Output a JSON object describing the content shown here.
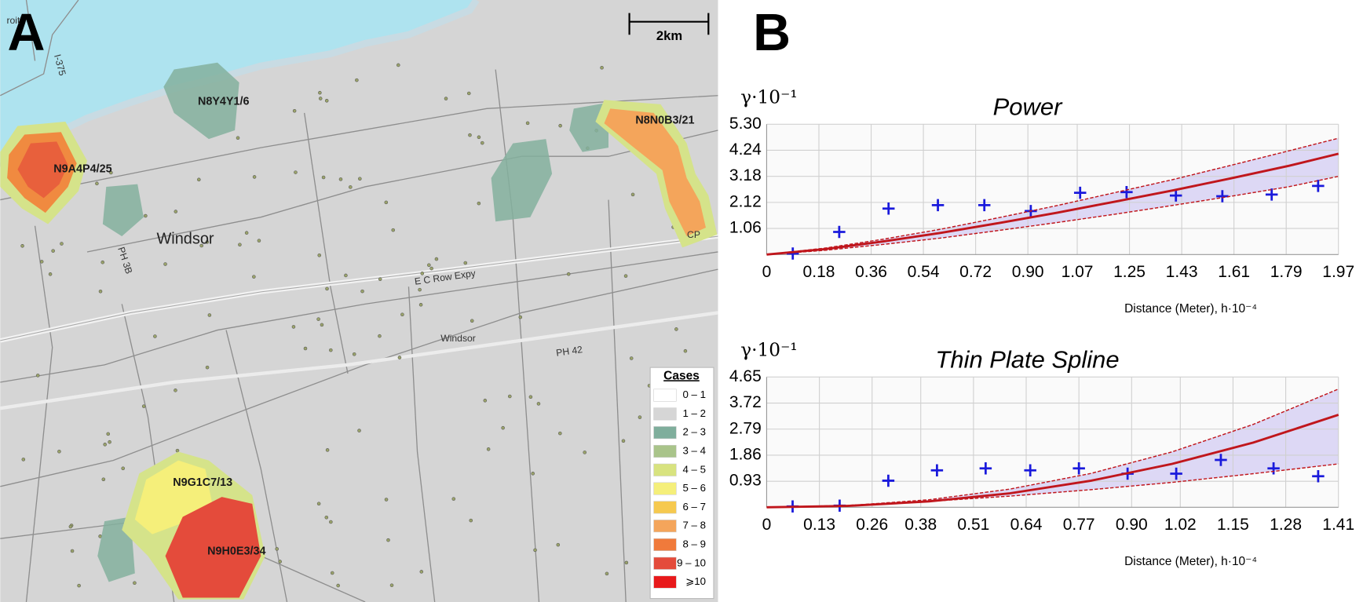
{
  "map": {
    "panel": "A",
    "scale": "2km",
    "labels": [
      "roit",
      "I-375",
      "N8Y4Y1/6",
      "N9A4P4/25",
      "N8N0B3/21",
      "Windsor",
      "PH 3B",
      "E C Row Expy",
      "Windsor",
      "PH 42",
      "CP",
      "N9G1C7/13",
      "N9H0E3/34"
    ],
    "legend": {
      "title": "Cases",
      "items": [
        {
          "label": "0 – 1",
          "color": "#ffffff"
        },
        {
          "label": "1 – 2",
          "color": "#d6d6d6"
        },
        {
          "label": "2 – 3",
          "color": "#7fae9c"
        },
        {
          "label": "3 – 4",
          "color": "#a9c48a"
        },
        {
          "label": "4 – 5",
          "color": "#d8e37f"
        },
        {
          "label": "5 – 6",
          "color": "#f5ef7a"
        },
        {
          "label": "6 – 7",
          "color": "#f6c94f"
        },
        {
          "label": "7 – 8",
          "color": "#f4a55b"
        },
        {
          "label": "8 – 9",
          "color": "#f07a3b"
        },
        {
          "label": "9 – 10",
          "color": "#e44b3b"
        },
        {
          "label": "⩾10",
          "color": "#e8191b"
        }
      ]
    }
  },
  "panel_b": "B",
  "chart_data": [
    {
      "type": "scatter",
      "title": "Power",
      "y_label": "γ·10⁻¹",
      "x_label": "Distance (Meter), h·10⁻⁴",
      "xlim": [
        0,
        1.97
      ],
      "ylim": [
        0,
        5.3
      ],
      "xticks": [
        0,
        0.18,
        0.36,
        0.54,
        0.72,
        {
          "value": 0.9,
          "label": "0.90"
        },
        1.07,
        1.25,
        1.43,
        1.61,
        1.79,
        1.97
      ],
      "yticks": [
        1.06,
        2.12,
        3.18,
        4.24,
        {
          "value": 5.3,
          "label": "5.30"
        }
      ],
      "grid": true,
      "band_color": "#c9c2f2",
      "series": [
        {
          "type": "scatter",
          "color": "#1a1adc",
          "x": [
            0.09,
            0.25,
            0.42,
            0.59,
            0.75,
            0.91,
            1.08,
            1.24,
            1.41,
            1.57,
            1.74,
            1.9
          ],
          "values": [
            0.04,
            0.92,
            1.87,
            2.01,
            2.01,
            1.77,
            2.51,
            2.54,
            2.4,
            2.37,
            2.44,
            2.79
          ]
        },
        {
          "type": "line",
          "color": "#c0161c",
          "x": [
            0,
            0.2,
            0.4,
            0.6,
            0.8,
            1.0,
            1.2,
            1.4,
            1.6,
            1.8,
            1.97
          ],
          "values": [
            0,
            0.22,
            0.53,
            0.88,
            1.28,
            1.7,
            2.15,
            2.61,
            3.1,
            3.61,
            4.1
          ]
        },
        {
          "type": "line",
          "color": "#c0161c",
          "dash": true,
          "x": [
            0,
            0.2,
            0.4,
            0.6,
            0.8,
            1.0,
            1.2,
            1.4,
            1.6,
            1.8,
            1.97
          ],
          "values": [
            0,
            0.26,
            0.62,
            1.03,
            1.5,
            1.99,
            2.52,
            3.05,
            3.63,
            4.22,
            4.73
          ]
        },
        {
          "type": "line",
          "color": "#c0161c",
          "dash": true,
          "x": [
            0,
            0.2,
            0.4,
            0.6,
            0.8,
            1.0,
            1.2,
            1.4,
            1.6,
            1.8,
            1.97
          ],
          "values": [
            0,
            0.17,
            0.41,
            0.67,
            0.98,
            1.3,
            1.64,
            2.0,
            2.37,
            2.76,
            3.18
          ]
        }
      ]
    },
    {
      "type": "scatter",
      "title": "Thin Plate Spline",
      "y_label": "γ·10⁻¹",
      "x_label": "Distance (Meter), h·10⁻⁴",
      "xlim": [
        0,
        1.41
      ],
      "ylim": [
        0,
        4.65
      ],
      "xticks": [
        0,
        0.13,
        0.26,
        0.38,
        0.51,
        0.64,
        0.77,
        {
          "value": 0.9,
          "label": "0.90"
        },
        1.02,
        1.15,
        1.28,
        1.41
      ],
      "yticks": [
        0.93,
        1.86,
        2.79,
        3.72,
        4.65
      ],
      "grid": true,
      "band_color": "#c9c2f2",
      "series": [
        {
          "type": "scatter",
          "color": "#1a1adc",
          "x": [
            0.064,
            0.18,
            0.3,
            0.42,
            0.54,
            0.65,
            0.77,
            0.89,
            1.01,
            1.12,
            1.25,
            1.36
          ],
          "values": [
            0.03,
            0.06,
            0.95,
            1.32,
            1.39,
            1.32,
            1.39,
            1.2,
            1.2,
            1.69,
            1.39,
            1.11
          ]
        },
        {
          "type": "line",
          "color": "#c0161c",
          "x": [
            0,
            0.2,
            0.4,
            0.6,
            0.8,
            1.0,
            1.2,
            1.41
          ],
          "values": [
            0,
            0.05,
            0.21,
            0.5,
            0.95,
            1.55,
            2.31,
            3.3
          ]
        },
        {
          "type": "line",
          "color": "#c0161c",
          "dash": true,
          "x": [
            0,
            0.2,
            0.4,
            0.6,
            0.8,
            1.0,
            1.2,
            1.41
          ],
          "values": [
            0,
            0.06,
            0.27,
            0.65,
            1.21,
            1.98,
            2.96,
            4.22
          ]
        },
        {
          "type": "line",
          "color": "#c0161c",
          "dash": true,
          "x": [
            0,
            0.2,
            0.4,
            0.6,
            0.8,
            1.0,
            1.2,
            1.41
          ],
          "values": [
            0,
            0.07,
            0.21,
            0.4,
            0.63,
            0.89,
            1.2,
            1.55
          ]
        }
      ]
    }
  ]
}
